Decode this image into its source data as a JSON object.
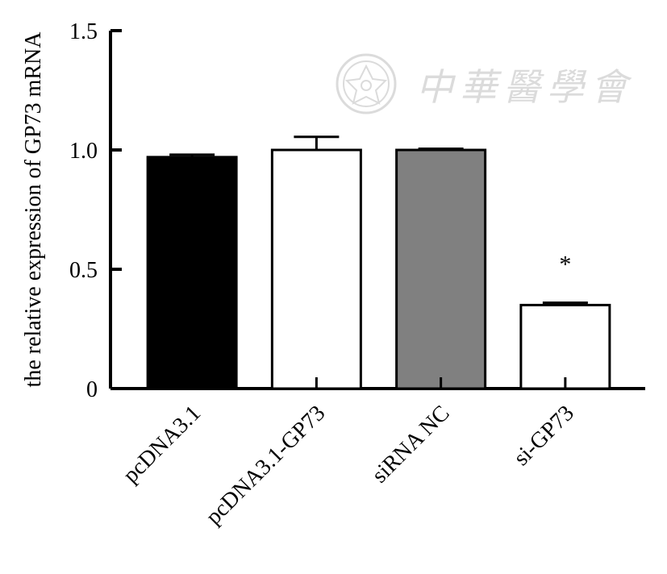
{
  "chart_data": {
    "type": "bar",
    "ylabel": "the relative expression of GP73 mRNA",
    "ylim": [
      0,
      1.5
    ],
    "yticks": [
      0,
      0.5,
      1.0,
      1.5
    ],
    "ytick_labels": [
      "0",
      "0.5",
      "1.0",
      "1.5"
    ],
    "categories": [
      "pcDNA3.1",
      "pcDNA3.1-GP73",
      "siRNA NC",
      "si-GP73"
    ],
    "values": [
      0.97,
      1.0,
      1.0,
      0.35
    ],
    "errors": [
      0.01,
      0.055,
      0.005,
      0.01
    ],
    "bar_colors": [
      "#000000",
      "#ffffff",
      "#808080",
      "#ffffff"
    ],
    "annotations": [
      {
        "category": "si-GP73",
        "text": "*"
      }
    ],
    "grid": false,
    "legend": "none"
  },
  "watermark": {
    "text": "中華醫學會",
    "seal_icon": "society-seal-icon"
  }
}
